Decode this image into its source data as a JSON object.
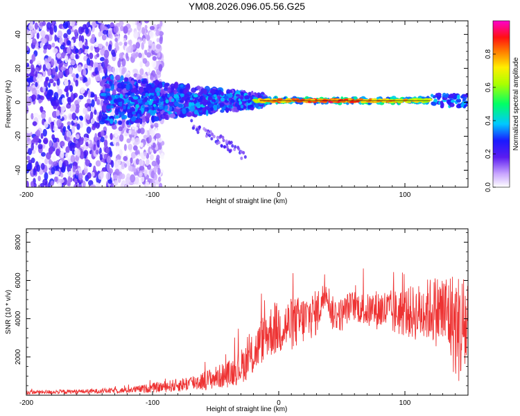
{
  "figure_title": "YM08.2026.096.05.56.G25",
  "colors": {
    "snr_line": "#ee3333",
    "axes": "#000000",
    "background": "#ffffff"
  },
  "chart_data": [
    {
      "type": "heatmap",
      "title": "YM08.2026.096.05.56.G25",
      "xlabel": "Height of straight line (km)",
      "ylabel": "Frequency (Hz)",
      "xlim": [
        -200,
        150
      ],
      "ylim": [
        -50,
        48
      ],
      "xticks": [
        -200,
        -100,
        0,
        100
      ],
      "xtick_labels": [
        "-200",
        "-100",
        "0",
        "100"
      ],
      "yticks": [
        -40,
        -20,
        0,
        20,
        40
      ],
      "ytick_labels": [
        "-40",
        "-20",
        "0",
        "20",
        "40"
      ],
      "colorbar": {
        "label": "Normalized spectral amplitude",
        "range": [
          0,
          1
        ],
        "ticks": [
          0.0,
          0.2,
          0.4,
          0.6,
          0.8
        ],
        "tick_labels": [
          "0.0",
          "0.2",
          "0.4",
          "0.6",
          "0.8"
        ],
        "colormap": "rainbow (white-purple-blue-cyan-green-yellow-red-magenta)"
      },
      "description_values": {
        "signal_band_center_hz": 1,
        "strong_band_x_range_km": [
          -20,
          120
        ],
        "diffuse_noise_x_range_km": [
          -200,
          -110
        ]
      }
    },
    {
      "type": "line",
      "xlabel": "Height of straight line (km)",
      "ylabel": "SNR (10 * v/v)",
      "xlim": [
        -200,
        150
      ],
      "ylim": [
        0,
        8700
      ],
      "xticks": [
        -200,
        -100,
        0,
        100
      ],
      "xtick_labels": [
        "-200",
        "-100",
        "0",
        "100"
      ],
      "yticks": [
        2000,
        4000,
        6000,
        8000
      ],
      "ytick_labels": [
        "2000",
        "4000",
        "6000",
        "8000"
      ],
      "series": [
        {
          "name": "SNR",
          "x_envelope": [
            -200,
            -150,
            -120,
            -100,
            -80,
            -60,
            -40,
            -30,
            -20,
            -15,
            -10,
            -5,
            0,
            10,
            20,
            30,
            35,
            38,
            42,
            50,
            55,
            60,
            70,
            80,
            90,
            100,
            110,
            120,
            130,
            135,
            140,
            145,
            150
          ],
          "y_envelope": [
            150,
            200,
            260,
            380,
            520,
            750,
            1100,
            1500,
            2100,
            2700,
            3200,
            3400,
            3500,
            3700,
            3950,
            4300,
            5000,
            5500,
            4300,
            4200,
            4600,
            4700,
            4400,
            4500,
            4300,
            4350,
            4300,
            4500,
            4350,
            4200,
            3600,
            3400,
            3800
          ],
          "noise_amplitude": [
            100,
            120,
            150,
            250,
            350,
            500,
            700,
            900,
            1100,
            1200,
            1300,
            1400,
            1400,
            1400,
            1300,
            1200,
            900,
            700,
            900,
            900,
            800,
            800,
            900,
            1100,
            1200,
            1300,
            1500,
            1700,
            2100,
            2400,
            2800,
            3000,
            3000
          ]
        }
      ]
    }
  ]
}
